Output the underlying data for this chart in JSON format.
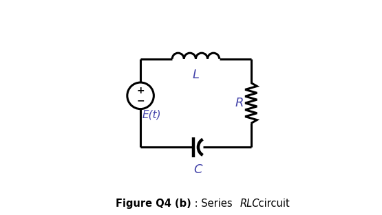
{
  "bg_color": "#ffffff",
  "circuit_color": "#000000",
  "label_color": "#4444aa",
  "label_color_brown": "#8B6B00",
  "figsize": [
    5.55,
    3.13
  ],
  "dpi": 100,
  "label_L": "L",
  "label_R": "R",
  "label_C": "C",
  "label_Et": "E(t)",
  "caption_bold": "Figure Q4 (b)",
  "caption_colon": " : Series ",
  "caption_italic": "RLC",
  "caption_end": " circuit"
}
